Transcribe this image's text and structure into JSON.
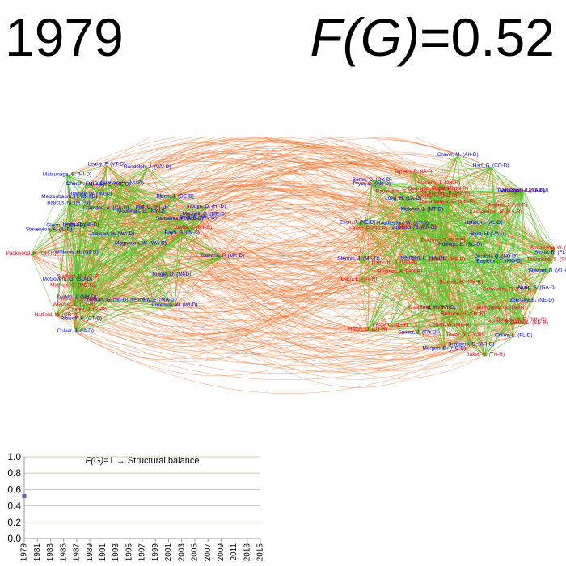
{
  "header": {
    "year": "1979",
    "metric_symbol": "F(G)",
    "metric_value": "=0.52"
  },
  "colors": {
    "republican": "#e8001c",
    "democrat": "#0000dd",
    "positive_edge": "#3fd12c",
    "negative_edge": "#ef6a1e",
    "series_marker": "#6b5aa6",
    "plot_grid": "#a8d68c"
  },
  "network": {
    "left_cluster": [
      {
        "name": "Tsongas, P. (MA-D)",
        "party": "D"
      },
      {
        "name": "Nelson, G. (WI-D)",
        "party": "D"
      },
      {
        "name": "Muskie, E. (ME-D)",
        "party": "D"
      },
      {
        "name": "Culver, J. (IA-D)",
        "party": "D"
      },
      {
        "name": "Cannon, H. (NV-D)",
        "party": "D"
      },
      {
        "name": "Church, F. (ID-D)",
        "party": "D"
      },
      {
        "name": "Moynihan, D. (NY-D)",
        "party": "D"
      },
      {
        "name": "Hatfield, M. (OR-R)",
        "party": "R"
      },
      {
        "name": "Jackson, H. (WA-D)",
        "party": "D"
      },
      {
        "name": "Bradley, W. (NJ-D)",
        "party": "D"
      },
      {
        "name": "Mitchell, G. (ME-D)",
        "party": "D"
      },
      {
        "name": "Proxmire, W. (WI-D)",
        "party": "D"
      },
      {
        "name": "Byrd, R. (WV-D)",
        "party": "D"
      },
      {
        "name": "Metzenbaum, H. (OH-D)",
        "party": "D"
      },
      {
        "name": "Inouye, D. (HI-D)",
        "party": "D"
      },
      {
        "name": "Durkin, J. (NH-D)",
        "party": "D"
      },
      {
        "name": "Pell, C. (RI-D)",
        "party": "D"
      },
      {
        "name": "Kennedy, E. (MA-D)",
        "party": "D"
      },
      {
        "name": "McGovern, G. (SD-D)",
        "party": "D"
      },
      {
        "name": "Javits, J. (NY-R)",
        "party": "R"
      },
      {
        "name": "Leahy, P. (VT-D)",
        "party": "D"
      },
      {
        "name": "Riegle, D. (MI-D)",
        "party": "D"
      },
      {
        "name": "Stevenson, A. (IL-D)",
        "party": "D"
      },
      {
        "name": "Stafford, R. (VT-R)",
        "party": "R"
      },
      {
        "name": "Magnuson, W. (WA-D)",
        "party": "D"
      },
      {
        "name": "Heinz, H. (PA-R)",
        "party": "R"
      },
      {
        "name": "Matsunaga, S. (HI-D)",
        "party": "D"
      },
      {
        "name": "Williams, H. (NJ-D)",
        "party": "D"
      },
      {
        "name": "Mathias, C. (MD-R)",
        "party": "R"
      },
      {
        "name": "Weicker, L. (CT-R)",
        "party": "R"
      },
      {
        "name": "Ribicoff, A. (CT-D)",
        "party": "D"
      },
      {
        "name": "Levin, C. (MI-D)",
        "party": "D"
      },
      {
        "name": "Sarbanes, P. (MD-D)",
        "party": "D"
      },
      {
        "name": "Biden, J. (DE-D)",
        "party": "D"
      },
      {
        "name": "Baucus, M. (MT-D)",
        "party": "D"
      },
      {
        "name": "Packwood, R. (OR-R)",
        "party": "R"
      },
      {
        "name": "Bayh, B. (IN-D)",
        "party": "D"
      },
      {
        "name": "Cranston, A. (CA-D)",
        "party": "D"
      },
      {
        "name": "Glenn, J. (OH-D)",
        "party": "D"
      },
      {
        "name": "Chafee, J. (RI-R)",
        "party": "R"
      },
      {
        "name": "Randolph, J. (WV-D)",
        "party": "D"
      }
    ],
    "right_cluster": [
      {
        "name": "Boschwitz, R. (MN-R)",
        "party": "R"
      },
      {
        "name": "Schweiker, R. (PA-R)",
        "party": "R"
      },
      {
        "name": "Schmitt, H. (NM-R)",
        "party": "R"
      },
      {
        "name": "Burdick, Q. (ND-D)",
        "party": "D"
      },
      {
        "name": "Johnston, J. (LA-D)",
        "party": "D"
      },
      {
        "name": "Garn, E. (UT-R)",
        "party": "R"
      },
      {
        "name": "Chiles, L. (FL-D)",
        "party": "D"
      },
      {
        "name": "McClure, J. (ID-R)",
        "party": "R"
      },
      {
        "name": "DeConcini, D. (AZ-D)",
        "party": "D"
      },
      {
        "name": "Durenberger, D. (MN-R)",
        "party": "R"
      },
      {
        "name": "Eagleton, T. (MO-D)",
        "party": "D"
      },
      {
        "name": "Dole, R. (KS-R)",
        "party": "R"
      },
      {
        "name": "Huddleston, W. (KY-D)",
        "party": "D"
      },
      {
        "name": "Stevens, T. (AK-R)",
        "party": "R"
      },
      {
        "name": "Melcher, J. (MT-D)",
        "party": "D"
      },
      {
        "name": "Heflin, H. (AL-D)",
        "party": "D"
      },
      {
        "name": "Hatch, O. (UT-R)",
        "party": "R"
      },
      {
        "name": "Humphrey, G. (NH-R)",
        "party": "R"
      },
      {
        "name": "Thurmond, S. (SC-R)",
        "party": "R"
      },
      {
        "name": "Boren, D. (OK-D)",
        "party": "D"
      },
      {
        "name": "Stewart, D. (AL-D)",
        "party": "D"
      },
      {
        "name": "Baker, H. (TN-R)",
        "party": "R"
      },
      {
        "name": "Exon, J. (NE-D)",
        "party": "D"
      },
      {
        "name": "Ford, W. (KY-D)",
        "party": "D"
      },
      {
        "name": "Tower, J. (TX-R)",
        "party": "R"
      },
      {
        "name": "Nunn, S. (GA-D)",
        "party": "D"
      },
      {
        "name": "Jepsen, R. (IA-R)",
        "party": "R"
      },
      {
        "name": "Bentsen, L. (TX-D)",
        "party": "D"
      },
      {
        "name": "Pressler, L. (SD-R)",
        "party": "R"
      },
      {
        "name": "Helms, J. (NC-R)",
        "party": "R"
      },
      {
        "name": "Hollings, E. (SC-D)",
        "party": "D"
      },
      {
        "name": "Talmadge, H. (GA-D)",
        "party": "D"
      },
      {
        "name": "Stone, R. (FL-D)",
        "party": "D"
      },
      {
        "name": "Lugar, R. (IN-R)",
        "party": "R"
      },
      {
        "name": "Morgan, R. (NC-D)",
        "party": "D"
      },
      {
        "name": "Kassebaum, N. (KS-R)",
        "party": "R"
      },
      {
        "name": "Cohen, W. (ME-R)",
        "party": "R"
      },
      {
        "name": "Warner, J. (VA-R)",
        "party": "R"
      },
      {
        "name": "Percy, C. (IL-R)",
        "party": "R"
      },
      {
        "name": "Young, M. (ND-R)",
        "party": "R"
      },
      {
        "name": "Domenici, P. (NM-R)",
        "party": "R"
      },
      {
        "name": "Bellmon, H. (OK-R)",
        "party": "R"
      },
      {
        "name": "Armstrong, W. (CO-R)",
        "party": "R"
      },
      {
        "name": "Pryor, D. (AR-D)",
        "party": "D"
      },
      {
        "name": "Byrd, H. (VA-I)",
        "party": "D"
      },
      {
        "name": "Roth, W. (DE-R)",
        "party": "R"
      },
      {
        "name": "Stennis, J. (MS-D)",
        "party": "D"
      },
      {
        "name": "Gravel, M. (AK-D)",
        "party": "D"
      },
      {
        "name": "Danforth, J. (MO-R)",
        "party": "R"
      },
      {
        "name": "Simpson, A. (WY-R)",
        "party": "R"
      },
      {
        "name": "Hayakawa, S. (CA-R)",
        "party": "R"
      },
      {
        "name": "Laxalt, P. (NV-R)",
        "party": "R"
      },
      {
        "name": "Goldwater, B. (AZ-R)",
        "party": "R"
      },
      {
        "name": "Cochran, T. (MS-R)",
        "party": "R"
      },
      {
        "name": "Sasser, J. (TN-D)",
        "party": "D"
      },
      {
        "name": "Bumpers, D. (AR-D)",
        "party": "D"
      },
      {
        "name": "Wallop, M. (WY-R)",
        "party": "R"
      },
      {
        "name": "Long, R. (LA-D)",
        "party": "D"
      },
      {
        "name": "Zorinsky, E. (NE-D)",
        "party": "D"
      },
      {
        "name": "Hart, G. (CO-D)",
        "party": "D"
      }
    ]
  },
  "chart_data": {
    "type": "scatter",
    "title": "F(G)=1 → Structural balance",
    "title_symbol": "F(G)",
    "title_rest": "=1 → Structural balance",
    "x_ticks": [
      "1979",
      "1981",
      "1983",
      "1985",
      "1987",
      "1989",
      "1991",
      "1993",
      "1995",
      "1997",
      "1999",
      "2001",
      "2003",
      "2005",
      "2007",
      "2009",
      "2011",
      "2013",
      "2015"
    ],
    "y_ticks": [
      "0.0",
      "0.2",
      "0.4",
      "0.6",
      "0.8",
      "1.0"
    ],
    "ylim": [
      0,
      1
    ],
    "xlim": [
      1979,
      2015
    ],
    "grid": true,
    "legend": "none",
    "series": [
      {
        "x": [
          1979
        ],
        "y": [
          0.52
        ]
      }
    ]
  }
}
